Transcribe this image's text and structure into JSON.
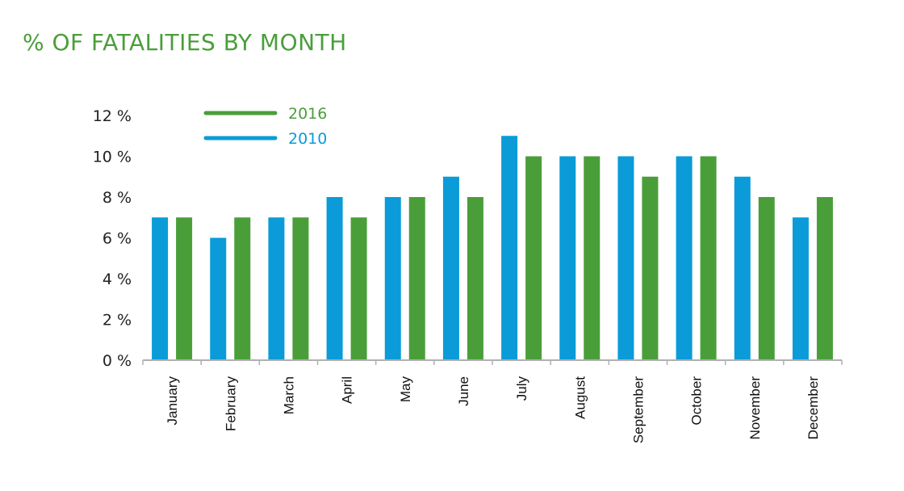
{
  "chart_data": {
    "type": "bar",
    "title": "% OF FATALITIES BY MONTH",
    "xlabel": "",
    "ylabel": "",
    "ylim": [
      0,
      12
    ],
    "y_ticks": [
      "0 %",
      "2 %",
      "4 %",
      "6 %",
      "8 %",
      "10 %",
      "12 %"
    ],
    "grid": false,
    "legend_position": "top-left",
    "categories": [
      "January",
      "February",
      "March",
      "April",
      "May",
      "June",
      "July",
      "August",
      "September",
      "October",
      "November",
      "December"
    ],
    "series": [
      {
        "name": "2010",
        "color": "#0a9bd8",
        "values": [
          7,
          6,
          7,
          8,
          8,
          9,
          11,
          10,
          10,
          10,
          9,
          7
        ]
      },
      {
        "name": "2016",
        "color": "#4a9e3a",
        "values": [
          7,
          7,
          7,
          7,
          8,
          8,
          10,
          10,
          9,
          10,
          8,
          8
        ]
      }
    ],
    "legend_order": [
      "2016",
      "2010"
    ]
  }
}
